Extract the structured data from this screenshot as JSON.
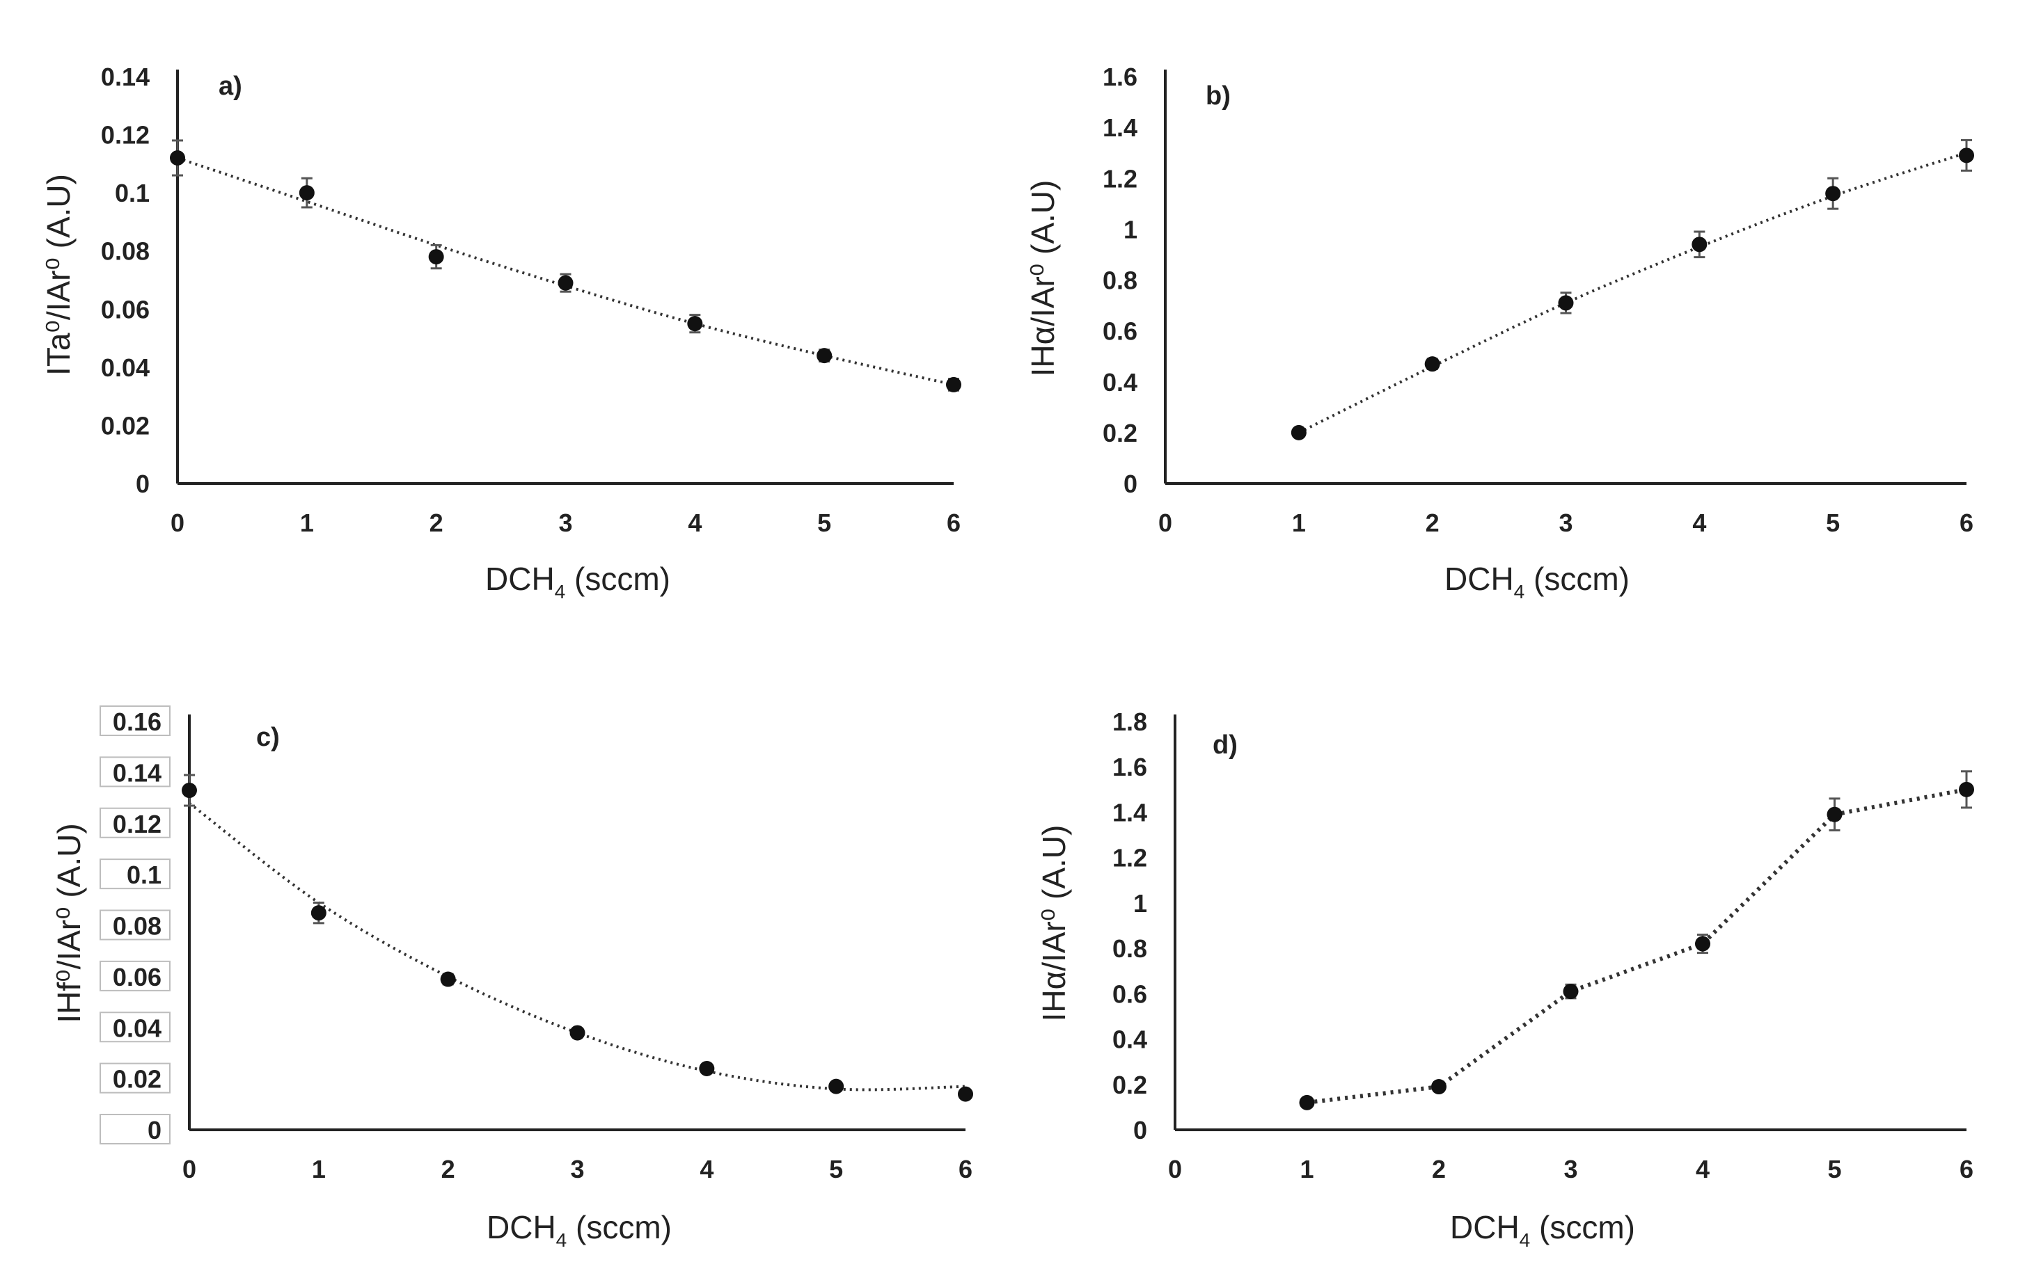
{
  "chart_data": [
    {
      "type": "scatter",
      "id": "a",
      "panel_label": "a)",
      "xlabel_main": "DCH",
      "xlabel_sub": "4",
      "xlabel_unit": " (sccm)",
      "ylabel": "ITa⁰/IAr⁰ (A.U)",
      "xlim": [
        0,
        6
      ],
      "ylim": [
        0,
        0.14
      ],
      "xticks": [
        "0",
        "1",
        "2",
        "3",
        "4",
        "5",
        "6"
      ],
      "yticks": [
        "0",
        "0.02",
        "0.04",
        "0.06",
        "0.08",
        "0.1",
        "0.12",
        "0.14"
      ],
      "trendline": "polynomial",
      "series": [
        {
          "name": "ITa/IAr",
          "x": [
            0,
            1,
            2,
            3,
            4,
            5,
            6
          ],
          "y": [
            0.112,
            0.1,
            0.078,
            0.069,
            0.055,
            0.044,
            0.034
          ],
          "err": [
            0.006,
            0.005,
            0.004,
            0.003,
            0.003,
            0.002,
            0.002
          ]
        }
      ],
      "trend": {
        "x": [
          0,
          1,
          2,
          3,
          4,
          5,
          6
        ],
        "y": [
          0.112,
          0.097,
          0.082,
          0.068,
          0.055,
          0.044,
          0.034
        ]
      }
    },
    {
      "type": "scatter",
      "id": "b",
      "panel_label": "b)",
      "xlabel_main": "DCH",
      "xlabel_sub": "4",
      "xlabel_unit": " (sccm)",
      "ylabel": "IHα/IAr⁰ (A.U)",
      "xlim": [
        0,
        6
      ],
      "ylim": [
        0,
        1.6
      ],
      "xticks": [
        "0",
        "1",
        "2",
        "3",
        "4",
        "5",
        "6"
      ],
      "yticks": [
        "0",
        "0.2",
        "0.4",
        "0.6",
        "0.8",
        "1",
        "1.2",
        "1.4",
        "1.6"
      ],
      "trendline": "polynomial",
      "series": [
        {
          "name": "IHα/IAr",
          "x": [
            1,
            2,
            3,
            4,
            5,
            6
          ],
          "y": [
            0.2,
            0.47,
            0.71,
            0.94,
            1.14,
            1.29
          ],
          "err": [
            0.01,
            0.02,
            0.04,
            0.05,
            0.06,
            0.06
          ]
        }
      ],
      "trend": {
        "x": [
          1,
          2,
          3,
          4,
          5,
          6
        ],
        "y": [
          0.2,
          0.46,
          0.71,
          0.93,
          1.13,
          1.3
        ]
      }
    },
    {
      "type": "scatter",
      "id": "c",
      "panel_label": "c)",
      "xlabel_main": "DCH",
      "xlabel_sub": "4",
      "xlabel_unit": " (sccm)",
      "ylabel": "IHf⁰/IAr⁰ (A.U)",
      "xlim": [
        0,
        6
      ],
      "ylim": [
        0,
        0.16
      ],
      "xticks": [
        "0",
        "1",
        "2",
        "3",
        "4",
        "5",
        "6"
      ],
      "yticks": [
        "0",
        "0.02",
        "0.04",
        "0.06",
        "0.08",
        "0.1",
        "0.12",
        "0.14",
        "0.16"
      ],
      "trendline": "polynomial",
      "series": [
        {
          "name": "IHf/IAr",
          "x": [
            0,
            1,
            2,
            3,
            4,
            5,
            6
          ],
          "y": [
            0.133,
            0.085,
            0.059,
            0.038,
            0.024,
            0.017,
            0.014
          ],
          "err": [
            0.006,
            0.004,
            0.002,
            0.001,
            0.001,
            0.001,
            0.001
          ]
        }
      ],
      "trend": {
        "x": [
          0,
          1,
          2,
          3,
          4,
          5,
          6
        ],
        "y": [
          0.128,
          0.089,
          0.06,
          0.038,
          0.023,
          0.016,
          0.017
        ]
      }
    },
    {
      "type": "line",
      "id": "d",
      "panel_label": "d)",
      "xlabel_main": "DCH",
      "xlabel_sub": "4",
      "xlabel_unit": " (sccm)",
      "ylabel": "IHα/IAr⁰ (A.U)",
      "xlim": [
        0,
        6
      ],
      "ylim": [
        0,
        1.8
      ],
      "xticks": [
        "0",
        "1",
        "2",
        "3",
        "4",
        "5",
        "6"
      ],
      "yticks": [
        "0",
        "0.2",
        "0.4",
        "0.6",
        "0.8",
        "1",
        "1.2",
        "1.4",
        "1.6",
        "1.8"
      ],
      "trendline": "connect",
      "series": [
        {
          "name": "IHα/IAr",
          "x": [
            1,
            2,
            3,
            4,
            5,
            6
          ],
          "y": [
            0.12,
            0.19,
            0.61,
            0.82,
            1.39,
            1.5
          ],
          "err": [
            0.01,
            0.02,
            0.03,
            0.04,
            0.07,
            0.08
          ]
        }
      ],
      "trend": {
        "x": [
          1,
          2,
          3,
          4,
          5,
          6
        ],
        "y": [
          0.12,
          0.19,
          0.61,
          0.82,
          1.39,
          1.5
        ]
      }
    }
  ]
}
